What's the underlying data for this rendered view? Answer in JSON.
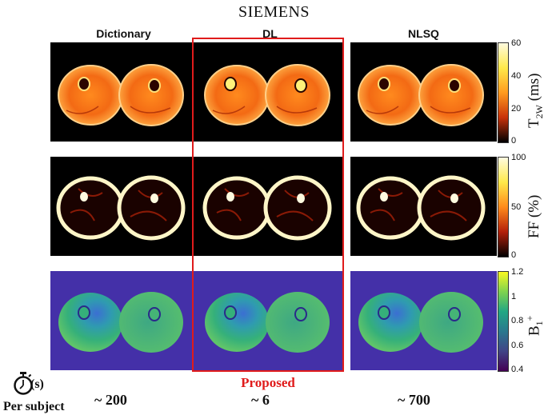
{
  "title": "SIEMENS",
  "columns": [
    "Dictionary",
    "DL",
    "NLSQ"
  ],
  "rows": [
    {
      "name": "t2w",
      "colorbar": {
        "ticks": [
          "60",
          "40",
          "20",
          "0"
        ],
        "label_main": "T",
        "label_sub": "2W",
        "label_tail": " (ms)",
        "colors": [
          "#fffbe0",
          "#ffe94a",
          "#ff9a1e",
          "#c8320a",
          "#000000"
        ]
      }
    },
    {
      "name": "ff",
      "colorbar": {
        "ticks": [
          "100",
          "50",
          "0"
        ],
        "label_main": "FF (%)",
        "colors": [
          "#fffbe0",
          "#ffe94a",
          "#ff8a1a",
          "#b3200a",
          "#000000"
        ]
      }
    },
    {
      "name": "b1",
      "colorbar": {
        "ticks": [
          "1.2",
          "1",
          "0.8",
          "0.6",
          "0.4"
        ],
        "label_main": "B",
        "label_sub": "1",
        "label_sup": "+",
        "colors": [
          "#f9f921",
          "#7fd34e",
          "#22a784",
          "#2a788e",
          "#414487",
          "#440154"
        ]
      }
    }
  ],
  "highlight": {
    "label": "Proposed",
    "color": "#e01b1b"
  },
  "timing": {
    "icon": "stopwatch-icon",
    "unit": "(s)",
    "row_label": "Per subject",
    "values": [
      "~ 200",
      "~ 6",
      "~ 700"
    ]
  }
}
